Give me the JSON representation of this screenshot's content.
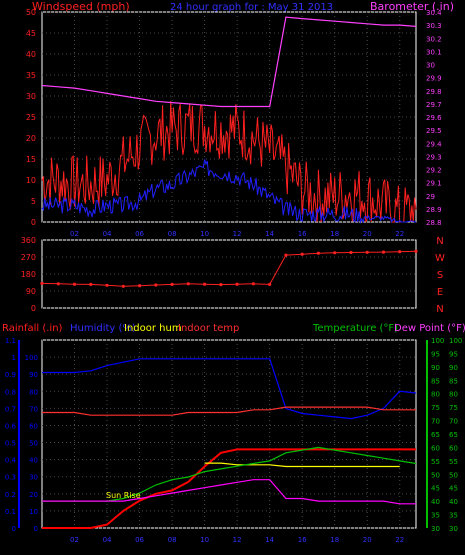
{
  "title": "24 hour graph for : May 31 2013",
  "colors": {
    "background": "#000000",
    "frame": "#ffffff",
    "grid": "#4a4a4a",
    "wind": "#ff2020",
    "gust_low": "#2020ff",
    "barometer": "#ff40ff",
    "direction": "#ff2020",
    "rain": "#ff0000",
    "humidity": "#0000ff",
    "indoor_hum": "#ffff00",
    "indoor_temp": "#ff3030",
    "temperature": "#00c000",
    "dew_point": "#ff00ff",
    "axis_rain": "#0000ff",
    "axis_temp": "#00c000",
    "axis_baro": "#ff40ff",
    "axis_dir": "#ff2020",
    "tick_x": "#3030ff"
  },
  "panels": {
    "wind": {
      "left_label": "Windspeed (mph)",
      "right_label": "Barometer (.in)",
      "left_ticks": [
        "0",
        "5",
        "10",
        "15",
        "20",
        "25",
        "30",
        "35",
        "40",
        "45",
        "50"
      ],
      "right_ticks": [
        "28.8",
        "28.9",
        "29",
        "29.1",
        "29.2",
        "29.3",
        "29.4",
        "29.5",
        "29.6",
        "29.7",
        "29.8",
        "29.9",
        "30",
        "30.1",
        "30.2",
        "30.3",
        "30.4"
      ],
      "x_ticks": [
        "02",
        "04",
        "06",
        "08",
        "10",
        "12",
        "14",
        "16",
        "18",
        "20",
        "22"
      ]
    },
    "direction": {
      "left_ticks": [
        "0",
        "90",
        "180",
        "270",
        "360"
      ],
      "compass": [
        "N",
        "W",
        "S",
        "E",
        "N"
      ]
    },
    "climate": {
      "labels": {
        "rain": "Rainfall (.in)",
        "humidity": "Humidity (%)",
        "indoor_hum": "Indoor hum",
        "indoor_temp": "Indoor temp",
        "temperature": "Temperature (°F)",
        "dew_point": "Dew Point (°F)"
      },
      "left_ticks": [
        "0",
        "0.1",
        "0.2",
        "0.3",
        "0.4",
        "0.5",
        "0.6",
        "0.7",
        "0.8",
        "0.9",
        "1",
        "1.1"
      ],
      "hum_ticks": [
        "0",
        "10",
        "20",
        "30",
        "40",
        "50",
        "60",
        "70",
        "80",
        "90",
        "100"
      ],
      "right_ticks": [
        "30",
        "35",
        "40",
        "45",
        "50",
        "55",
        "60",
        "65",
        "70",
        "75",
        "80",
        "85",
        "90",
        "95",
        "100"
      ],
      "x_ticks": [
        "02",
        "04",
        "06",
        "08",
        "10",
        "12",
        "14",
        "16",
        "18",
        "20",
        "22"
      ],
      "annotation": "Sun Rise"
    }
  },
  "chart_data": [
    {
      "type": "line",
      "title": "24 hour graph for : May 31 2013",
      "xlabel": "",
      "ylabel": "Windspeed (mph)",
      "ylim": [
        0,
        50
      ],
      "y2label": "Barometer (.in)",
      "y2lim": [
        28.8,
        30.4
      ],
      "x": [
        0,
        1,
        2,
        3,
        4,
        5,
        6,
        7,
        8,
        9,
        10,
        11,
        12,
        13,
        14,
        15,
        16,
        17,
        18,
        19,
        20,
        21,
        22,
        23
      ],
      "series": [
        {
          "name": "wind high",
          "values": [
            10,
            10,
            9,
            9,
            10,
            14,
            18,
            21,
            22,
            23,
            23,
            22,
            22,
            20,
            17,
            13,
            8,
            6,
            6,
            7,
            6,
            4,
            2,
            3
          ]
        },
        {
          "name": "wind low",
          "values": [
            4,
            4,
            4,
            3,
            4,
            4,
            5,
            8,
            9,
            11,
            13,
            12,
            11,
            9,
            6,
            3,
            2,
            2,
            2,
            2,
            1,
            1,
            0,
            0
          ]
        },
        {
          "name": "Barometer",
          "axis": "right",
          "values": [
            29.84,
            29.83,
            29.82,
            29.8,
            29.78,
            29.76,
            29.74,
            29.72,
            29.71,
            29.7,
            29.69,
            29.68,
            29.68,
            29.68,
            29.68,
            30.36,
            30.35,
            30.34,
            30.33,
            30.32,
            30.31,
            30.3,
            30.3,
            30.29
          ]
        }
      ]
    },
    {
      "type": "scatter",
      "title": "",
      "ylabel": "",
      "ylim": [
        0,
        360
      ],
      "x": [
        0,
        1,
        2,
        3,
        4,
        5,
        6,
        7,
        8,
        9,
        10,
        11,
        12,
        13,
        14,
        15,
        16,
        17,
        18,
        19,
        20,
        21,
        22,
        23
      ],
      "series": [
        {
          "name": "",
          "values": [
            130,
            128,
            126,
            125,
            120,
            115,
            118,
            122,
            125,
            128,
            126,
            124,
            126,
            128,
            125,
            280,
            285,
            290,
            292,
            294,
            295,
            296,
            298,
            300
          ]
        }
      ]
    },
    {
      "type": "line",
      "title": "",
      "ylabel": "Rainfall (.in)",
      "ylim": [
        0,
        1.1
      ],
      "y2label": "Temperature (°F)",
      "y2lim": [
        30,
        100
      ],
      "x": [
        0,
        1,
        2,
        3,
        4,
        5,
        6,
        7,
        8,
        9,
        10,
        11,
        12,
        13,
        14,
        15,
        16,
        17,
        18,
        19,
        20,
        21,
        22,
        23
      ],
      "series": [
        {
          "name": "Rainfall",
          "axis": "left",
          "values": [
            0,
            0,
            0,
            0,
            0.02,
            0.1,
            0.16,
            0.2,
            0.22,
            0.27,
            0.36,
            0.44,
            0.46,
            0.46,
            0.46,
            0.46,
            0.46,
            0.46,
            0.46,
            0.46,
            0.46,
            0.46,
            0.46,
            0.46
          ]
        },
        {
          "name": "Humidity",
          "axis": "hum",
          "values": [
            91,
            91,
            91,
            92,
            95,
            97,
            99,
            99,
            99,
            99,
            99,
            99,
            99,
            99,
            99,
            70,
            67,
            66,
            65,
            64,
            66,
            70,
            80,
            79
          ]
        },
        {
          "name": "Indoor hum",
          "axis": "hum",
          "values": [
            null,
            null,
            null,
            null,
            null,
            null,
            null,
            null,
            null,
            null,
            38,
            38,
            37,
            37,
            37,
            36,
            36,
            36,
            36,
            36,
            36,
            36,
            36,
            null
          ]
        },
        {
          "name": "Indoor temp",
          "axis": "right",
          "values": [
            73,
            73,
            73,
            72,
            72,
            72,
            72,
            72,
            72,
            73,
            73,
            73,
            73,
            74,
            74,
            75,
            75,
            75,
            75,
            75,
            75,
            74,
            74,
            74
          ]
        },
        {
          "name": "Temperature",
          "axis": "right",
          "values": [
            40,
            40,
            40,
            40,
            40,
            41,
            43,
            46,
            48,
            49,
            51,
            52,
            53,
            54,
            55,
            58,
            59,
            60,
            59,
            58,
            57,
            56,
            55,
            54
          ]
        },
        {
          "name": "Dew Point",
          "axis": "right",
          "values": [
            40,
            40,
            40,
            40,
            40,
            40,
            41,
            42,
            43,
            44,
            45,
            46,
            47,
            48,
            48,
            41,
            41,
            40,
            40,
            40,
            40,
            40,
            39,
            39
          ]
        }
      ]
    }
  ]
}
